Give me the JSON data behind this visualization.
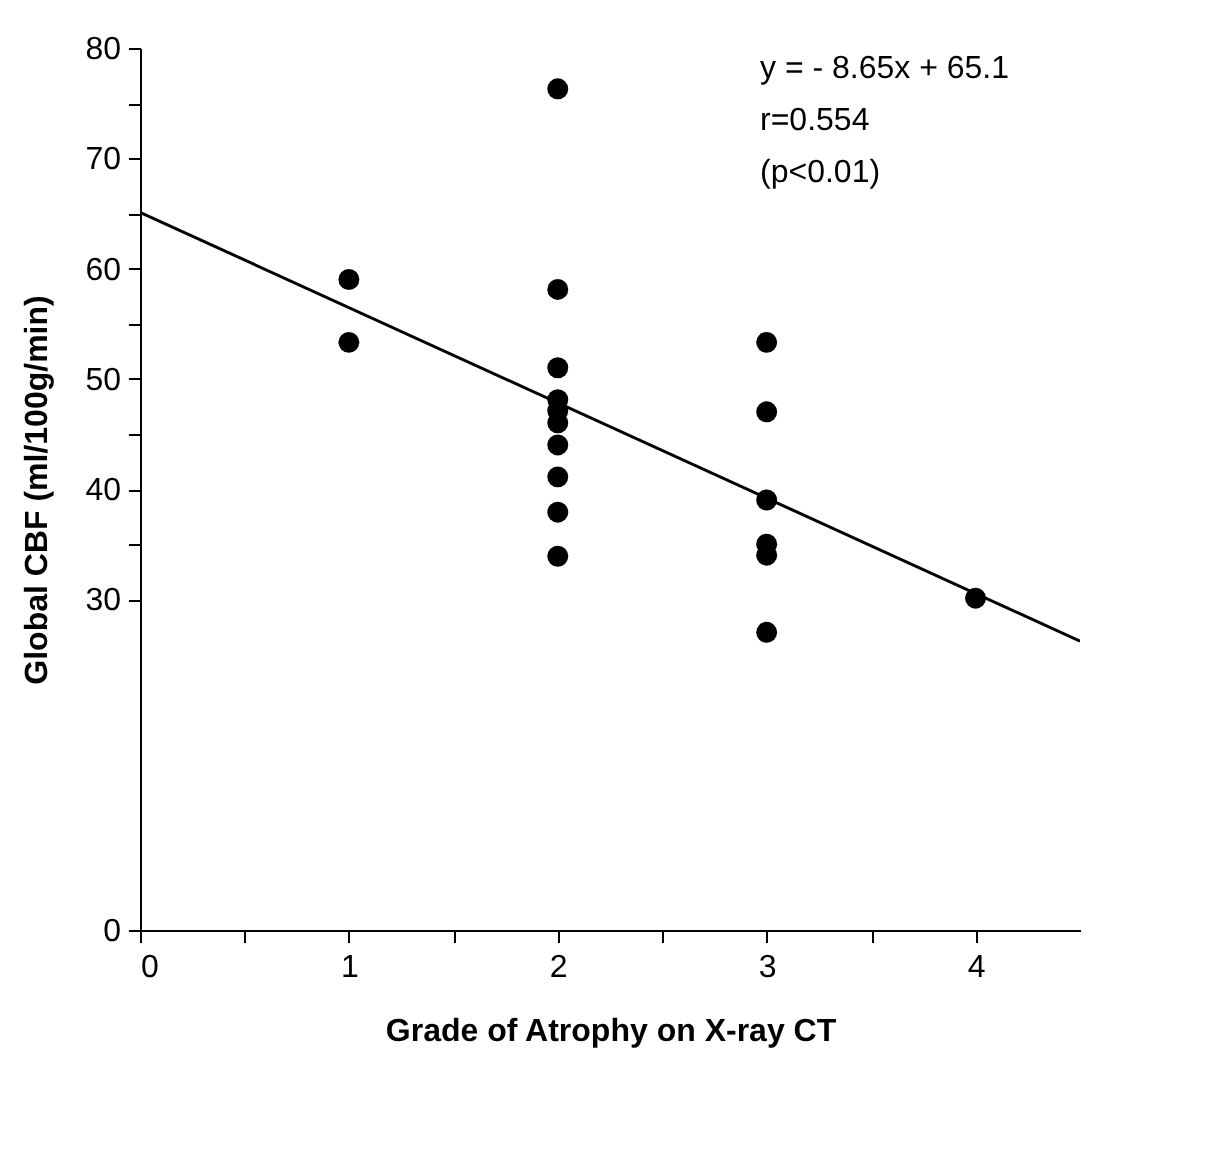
{
  "chart_data": {
    "type": "scatter",
    "ylabel": "Global CBF (ml/100g/min)",
    "xlabel": "Grade of Atrophy on X-ray CT",
    "annotations": [
      "y = - 8.65x + 65.1",
      "r=0.554",
      "(p<0.01)"
    ],
    "xlim": [
      0,
      4.5
    ],
    "ylim": [
      0,
      80
    ],
    "xticks": [
      0,
      {
        "value": 0.5,
        "label": null
      },
      1,
      {
        "value": 1.5,
        "label": null
      },
      2,
      {
        "value": 2.5,
        "label": null
      },
      3,
      {
        "value": 3.5,
        "label": null
      },
      4
    ],
    "yticks": [
      0,
      30,
      {
        "value": 35,
        "label": null
      },
      40,
      {
        "value": 45,
        "label": null
      },
      50,
      {
        "value": 55,
        "label": null
      },
      60,
      {
        "value": 65,
        "label": null
      },
      70,
      {
        "value": 75,
        "label": null
      },
      80
    ],
    "marker": "circle",
    "grid": false,
    "series": [
      {
        "color": "#000000",
        "x": [
          1,
          1,
          2,
          2,
          2,
          2,
          2,
          2,
          2,
          2,
          2,
          2,
          3,
          3,
          3,
          3,
          3,
          3,
          4
        ],
        "values": [
          59,
          53.3,
          76.3,
          58.1,
          51,
          48.1,
          47.1,
          46,
          44,
          41.1,
          37.9,
          33.9,
          53.3,
          47,
          39,
          35,
          34,
          27,
          30.1
        ]
      },
      {
        "type": "line",
        "marker": "none",
        "color": "#000000",
        "x": [
          0,
          4.5
        ],
        "values": [
          65.1,
          26.2
        ]
      }
    ]
  }
}
